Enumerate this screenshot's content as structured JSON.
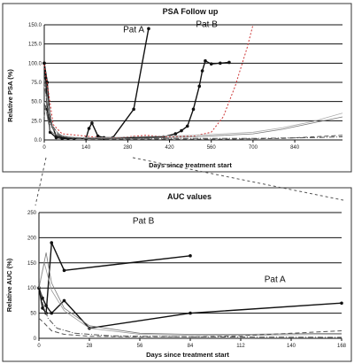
{
  "chart_data": [
    {
      "type": "line",
      "title": "PSA Follow up",
      "xlabel": "Days since treatment start",
      "ylabel": "Relative PSA (%)",
      "xlim": [
        0,
        1000
      ],
      "ylim": [
        0,
        150
      ],
      "x_ticks": [
        "0",
        "140",
        "280",
        "420",
        "560",
        "700",
        "840"
      ],
      "y_ticks": [
        "0.0",
        "25.0",
        "50.0",
        "75.0",
        "100.0",
        "125.0",
        "150.0"
      ],
      "grid": true,
      "annotations": [
        {
          "text": "Pat A",
          "x": 300,
          "y": 140
        },
        {
          "text": "Pat B",
          "x": 545,
          "y": 147
        }
      ],
      "series": [
        {
          "name": "Pat A",
          "style": "black-markers",
          "color": "#111111",
          "x": [
            0,
            5,
            10,
            20,
            40,
            60,
            100,
            140,
            150,
            160,
            180,
            200,
            230,
            300,
            350
          ],
          "y": [
            100,
            80,
            40,
            10,
            3,
            2,
            2,
            2,
            15,
            22,
            5,
            3,
            3,
            40,
            145
          ]
        },
        {
          "name": "Pat B",
          "style": "black-markers",
          "color": "#111111",
          "x": [
            0,
            10,
            20,
            40,
            80,
            140,
            200,
            300,
            400,
            440,
            460,
            480,
            500,
            520,
            530,
            540,
            560,
            590,
            620
          ],
          "y": [
            100,
            75,
            25,
            5,
            2,
            2,
            2,
            3,
            4,
            8,
            12,
            18,
            40,
            70,
            90,
            103,
            99,
            100,
            101
          ]
        },
        {
          "style": "red-dotted",
          "color": "#cc3333",
          "x": [
            0,
            15,
            30,
            60,
            140,
            210,
            280,
            340,
            420,
            500,
            560,
            600,
            640,
            680,
            700
          ],
          "y": [
            98,
            60,
            20,
            8,
            5,
            2,
            4,
            6,
            4,
            5,
            10,
            30,
            70,
            120,
            150
          ]
        },
        {
          "style": "thin",
          "color": "#777777",
          "x": [
            0,
            10,
            20,
            40,
            100,
            200,
            300,
            400,
            500,
            600,
            700,
            800,
            900,
            1000
          ],
          "y": [
            50,
            30,
            12,
            6,
            3,
            2,
            2,
            3,
            4,
            6,
            8,
            14,
            22,
            30
          ]
        },
        {
          "style": "thin",
          "color": "#aaaaaa",
          "x": [
            0,
            15,
            30,
            60,
            120,
            200,
            300,
            400,
            500,
            600,
            700,
            800,
            900,
            1000
          ],
          "y": [
            70,
            40,
            15,
            5,
            3,
            3,
            4,
            5,
            6,
            8,
            10,
            16,
            24,
            35
          ]
        },
        {
          "style": "dashed",
          "color": "#555555",
          "x": [
            0,
            10,
            25,
            50,
            100,
            200,
            400,
            600,
            800,
            900,
            1000
          ],
          "y": [
            30,
            60,
            20,
            6,
            2,
            1,
            1,
            1,
            2,
            4,
            6
          ]
        },
        {
          "style": "dash-dot",
          "color": "#555555",
          "x": [
            0,
            8,
            20,
            40,
            80,
            150,
            300,
            500,
            700,
            900,
            1000
          ],
          "y": [
            80,
            50,
            20,
            8,
            3,
            2,
            2,
            2,
            2,
            3,
            4
          ]
        }
      ]
    },
    {
      "type": "line",
      "title": "AUC values",
      "xlabel": "Days since treatment start",
      "ylabel": "Relative AUC (%)",
      "xlim": [
        0,
        168
      ],
      "ylim": [
        0,
        250
      ],
      "x_ticks": [
        "0",
        "28",
        "56",
        "84",
        "112",
        "140",
        "168"
      ],
      "y_ticks": [
        "0",
        "50",
        "100",
        "150",
        "200",
        "250"
      ],
      "grid": true,
      "annotations": [
        {
          "text": "Pat B",
          "x": 58,
          "y": 228
        },
        {
          "text": "Pat A",
          "x": 131,
          "y": 112
        }
      ],
      "series": [
        {
          "name": "Pat B",
          "style": "black-markers",
          "color": "#111111",
          "x": [
            0,
            2,
            4,
            7,
            14,
            84
          ],
          "y": [
            100,
            60,
            50,
            190,
            135,
            164
          ]
        },
        {
          "name": "Pat A",
          "style": "black-markers",
          "color": "#111111",
          "x": [
            0,
            2,
            4,
            7,
            14,
            28,
            84,
            168
          ],
          "y": [
            100,
            80,
            65,
            50,
            75,
            20,
            50,
            70
          ]
        },
        {
          "style": "thin",
          "color": "#777777",
          "x": [
            0,
            4,
            7,
            14,
            28,
            56,
            84,
            112,
            140,
            168
          ],
          "y": [
            100,
            170,
            110,
            60,
            25,
            10,
            8,
            8,
            9,
            10
          ]
        },
        {
          "style": "thin",
          "color": "#999999",
          "x": [
            0,
            3,
            7,
            14,
            28,
            56,
            84,
            112,
            140,
            168
          ],
          "y": [
            100,
            150,
            95,
            55,
            20,
            8,
            6,
            6,
            7,
            8
          ]
        },
        {
          "style": "dashed",
          "color": "#555555",
          "x": [
            0,
            3,
            7,
            14,
            28,
            56,
            84,
            112,
            140,
            168
          ],
          "y": [
            40,
            30,
            15,
            8,
            4,
            3,
            3,
            5,
            10,
            15
          ]
        },
        {
          "style": "dash-dot",
          "color": "#555555",
          "x": [
            0,
            2,
            5,
            10,
            20,
            40,
            84,
            168
          ],
          "y": [
            110,
            70,
            40,
            20,
            10,
            5,
            3,
            2
          ]
        }
      ]
    }
  ]
}
